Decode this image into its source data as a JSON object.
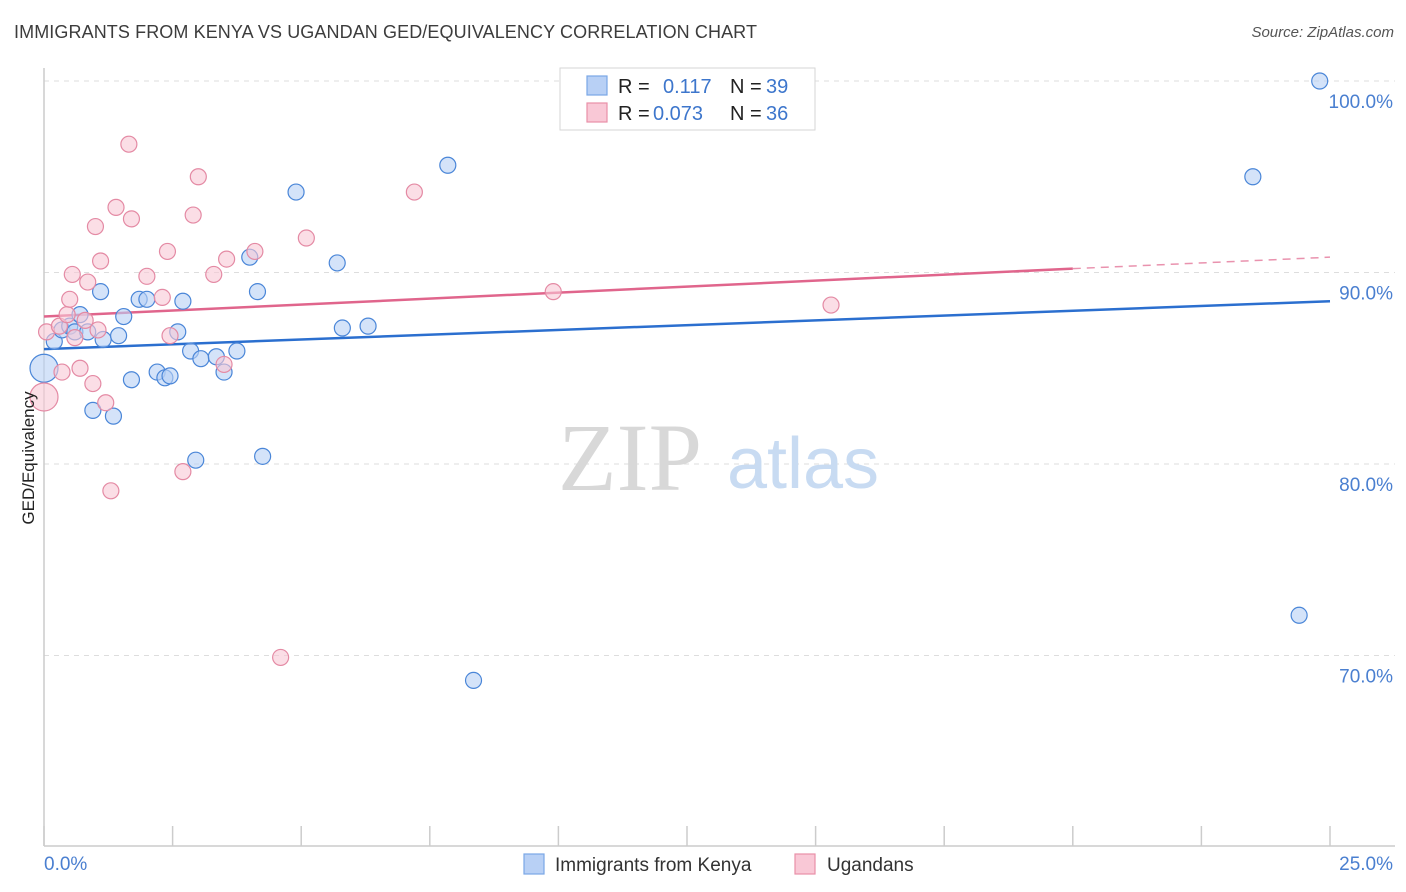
{
  "header": {
    "title": "IMMIGRANTS FROM KENYA VS UGANDAN GED/EQUIVALENCY CORRELATION CHART",
    "source": "Source: ZipAtlas.com"
  },
  "watermark": {
    "zip": "ZIP",
    "atlas": "atlas"
  },
  "legend": {
    "r_label": "R =",
    "n_label": "N =",
    "rows": [
      {
        "r": "0.117",
        "n": "39",
        "color": "#7aa7e6",
        "fill": "#b8d0f5"
      },
      {
        "r": "0.073",
        "n": "36",
        "color": "#e890a8",
        "fill": "#f9c8d6"
      }
    ]
  },
  "chart_data": {
    "type": "scatter",
    "title": "IMMIGRANTS FROM KENYA VS UGANDAN GED/EQUIVALENCY CORRELATION CHART",
    "ylabel": "GED/Equivalency",
    "xlabel": "",
    "x_tick_labels": [
      "0.0%",
      "25.0%"
    ],
    "y_tick_labels": [
      "100.0%",
      "90.0%",
      "80.0%",
      "70.0%"
    ],
    "y_ticks": [
      100,
      90,
      80,
      70
    ],
    "xlim": [
      0,
      25
    ],
    "ylim": [
      60,
      101.5
    ],
    "grid": true,
    "series": [
      {
        "name": "Immigrants from Kenya",
        "color": "#4a86d8",
        "fill": "#b8d0f5",
        "trend": {
          "x": [
            0,
            25
          ],
          "y": [
            86.0,
            88.5
          ],
          "color": "#2b6fcf"
        },
        "points": [
          [
            0.0,
            85.0
          ],
          [
            0.2,
            86.4
          ],
          [
            0.35,
            87.0
          ],
          [
            0.5,
            87.2
          ],
          [
            0.6,
            86.9
          ],
          [
            0.7,
            87.8
          ],
          [
            0.85,
            86.9
          ],
          [
            0.95,
            82.8
          ],
          [
            1.1,
            89.0
          ],
          [
            1.15,
            86.5
          ],
          [
            1.35,
            82.5
          ],
          [
            1.45,
            86.7
          ],
          [
            1.55,
            87.7
          ],
          [
            1.7,
            84.4
          ],
          [
            1.85,
            88.6
          ],
          [
            2.0,
            88.6
          ],
          [
            2.2,
            84.8
          ],
          [
            2.35,
            84.5
          ],
          [
            2.45,
            84.6
          ],
          [
            2.6,
            86.9
          ],
          [
            2.7,
            88.5
          ],
          [
            2.85,
            85.9
          ],
          [
            2.95,
            80.2
          ],
          [
            3.05,
            85.5
          ],
          [
            3.35,
            85.6
          ],
          [
            3.5,
            84.8
          ],
          [
            3.75,
            85.9
          ],
          [
            4.0,
            90.8
          ],
          [
            4.15,
            89.0
          ],
          [
            4.25,
            80.4
          ],
          [
            4.9,
            94.2
          ],
          [
            5.7,
            90.5
          ],
          [
            5.8,
            87.1
          ],
          [
            6.3,
            87.2
          ],
          [
            7.85,
            95.6
          ],
          [
            8.35,
            68.7
          ],
          [
            23.5,
            95.0
          ],
          [
            24.4,
            72.1
          ],
          [
            24.8,
            100.0
          ]
        ]
      },
      {
        "name": "Ugandans",
        "color": "#e48aa4",
        "fill": "#f9c8d6",
        "trend": {
          "x": [
            0,
            20
          ],
          "y": [
            87.7,
            90.2
          ],
          "color": "#e0658c",
          "dashed_extension_to": [
            25,
            90.8
          ]
        },
        "points": [
          [
            0.0,
            83.5
          ],
          [
            0.05,
            86.9
          ],
          [
            0.3,
            87.2
          ],
          [
            0.35,
            84.8
          ],
          [
            0.45,
            87.8
          ],
          [
            0.5,
            88.6
          ],
          [
            0.55,
            89.9
          ],
          [
            0.7,
            85.0
          ],
          [
            0.8,
            87.5
          ],
          [
            0.85,
            89.5
          ],
          [
            0.95,
            84.2
          ],
          [
            1.0,
            92.4
          ],
          [
            1.05,
            87.0
          ],
          [
            1.1,
            90.6
          ],
          [
            1.2,
            83.2
          ],
          [
            1.3,
            78.6
          ],
          [
            1.4,
            93.4
          ],
          [
            1.7,
            92.8
          ],
          [
            1.65,
            96.7
          ],
          [
            2.0,
            89.8
          ],
          [
            2.3,
            88.7
          ],
          [
            2.4,
            91.1
          ],
          [
            2.45,
            86.7
          ],
          [
            2.7,
            79.6
          ],
          [
            2.9,
            93.0
          ],
          [
            3.0,
            95.0
          ],
          [
            3.3,
            89.9
          ],
          [
            3.5,
            85.2
          ],
          [
            3.55,
            90.7
          ],
          [
            4.1,
            91.1
          ],
          [
            4.6,
            69.9
          ],
          [
            5.1,
            91.8
          ],
          [
            7.2,
            94.2
          ],
          [
            9.9,
            89.0
          ],
          [
            15.3,
            88.3
          ],
          [
            0.6,
            86.6
          ]
        ]
      }
    ]
  },
  "bottom_legend": [
    {
      "label": "Immigrants from Kenya"
    },
    {
      "label": "Ugandans"
    }
  ]
}
